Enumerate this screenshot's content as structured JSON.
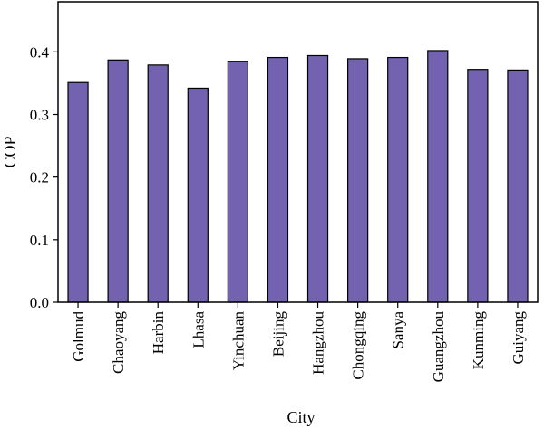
{
  "chart_data": {
    "type": "bar",
    "categories": [
      "Golmud",
      "Chaoyang",
      "Harbin",
      "Lhasa",
      "Yinchuan",
      "Beijing",
      "Hangzhou",
      "Chongqing",
      "Sanya",
      "Guangzhou",
      "Kunming",
      "Guiyang"
    ],
    "values": [
      0.351,
      0.387,
      0.379,
      0.342,
      0.385,
      0.391,
      0.394,
      0.389,
      0.391,
      0.402,
      0.372,
      0.371
    ],
    "title": "",
    "xlabel": "City",
    "ylabel": "COP",
    "ylim": [
      0,
      0.48
    ],
    "yticks": [
      "0.0",
      "0.1",
      "0.2",
      "0.3",
      "0.4"
    ],
    "grid": false,
    "legend": "none",
    "bar_color": "#7262b0"
  }
}
